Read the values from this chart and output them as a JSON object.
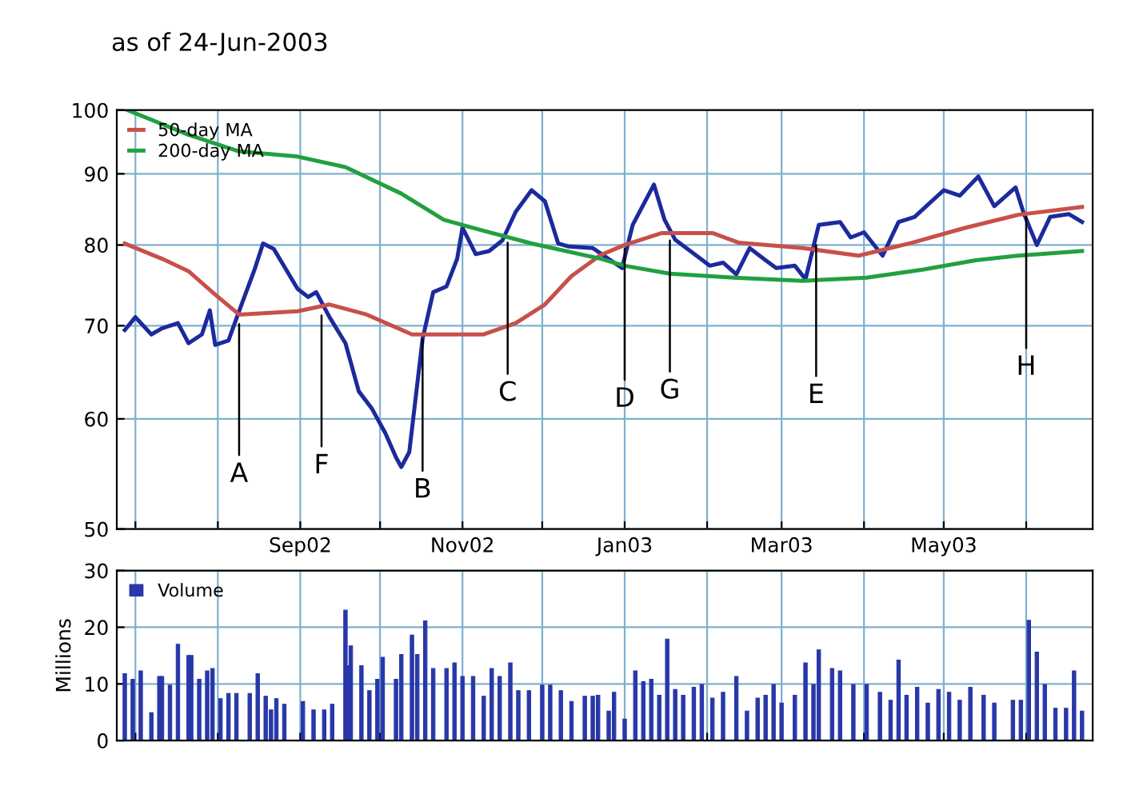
{
  "chart_data": [
    {
      "type": "line",
      "title": "as of 24-Jun-2003",
      "log": "y",
      "ylim": [
        50,
        100
      ],
      "yticks": [
        50,
        60,
        70,
        80,
        90,
        100
      ],
      "xlim": [
        "2002-06-24",
        "2003-06-26"
      ],
      "xticks": [
        {
          "value": "2002-07-01",
          "label": null
        },
        {
          "value": "2002-08-01",
          "label": null
        },
        {
          "value": "2002-09-01",
          "label": "Sep02"
        },
        {
          "value": "2002-10-01",
          "label": null
        },
        {
          "value": "2002-11-01",
          "label": "Nov02"
        },
        {
          "value": "2002-12-01",
          "label": null
        },
        {
          "value": "2003-01-01",
          "label": "Jan03"
        },
        {
          "value": "2003-02-01",
          "label": null
        },
        {
          "value": "2003-03-01",
          "label": "Mar03"
        },
        {
          "value": "2003-04-01",
          "label": null
        },
        {
          "value": "2003-05-01",
          "label": "May03"
        },
        {
          "value": "2003-06-01",
          "label": null
        }
      ],
      "grid": true,
      "legend": "top left",
      "series": [
        {
          "color": "#1c2a9c",
          "x": [
            "2002-06-27",
            "2002-07-01",
            "2002-07-07",
            "2002-07-11",
            "2002-07-17",
            "2002-07-21",
            "2002-07-26",
            "2002-07-29",
            "2002-07-31",
            "2002-08-05",
            "2002-08-09",
            "2002-08-15",
            "2002-08-18",
            "2002-08-22",
            "2002-08-31",
            "2002-09-04",
            "2002-09-07",
            "2002-09-12",
            "2002-09-18",
            "2002-09-23",
            "2002-09-28",
            "2002-10-03",
            "2002-10-07",
            "2002-10-09",
            "2002-10-12",
            "2002-10-17",
            "2002-10-21",
            "2002-10-26",
            "2002-10-30",
            "2002-11-01",
            "2002-11-06",
            "2002-11-11",
            "2002-11-16",
            "2002-11-21",
            "2002-11-27",
            "2002-12-02",
            "2002-12-07",
            "2002-12-11",
            "2002-12-20",
            "2002-12-25",
            "2002-12-31",
            "2003-01-04",
            "2003-01-12",
            "2003-01-16",
            "2003-01-20",
            "2003-01-28",
            "2003-02-02",
            "2003-02-07",
            "2003-02-12",
            "2003-02-17",
            "2003-02-23",
            "2003-02-27",
            "2003-03-06",
            "2003-03-10",
            "2003-03-15",
            "2003-03-23",
            "2003-03-27",
            "2003-04-01",
            "2003-04-08",
            "2003-04-14",
            "2003-04-20",
            "2003-05-01",
            "2003-05-07",
            "2003-05-14",
            "2003-05-20",
            "2003-05-28",
            "2003-05-31",
            "2003-06-05",
            "2003-06-10",
            "2003-06-17",
            "2003-06-22"
          ],
          "values": [
            69.5,
            71,
            69,
            69.7,
            70.3,
            68,
            69,
            71.8,
            67.8,
            68.3,
            71.7,
            77,
            80.2,
            79.5,
            74.4,
            73.4,
            74,
            71,
            68,
            62.8,
            61,
            58.6,
            56.3,
            55.4,
            56.8,
            68.5,
            74,
            74.7,
            78.2,
            82.3,
            78.8,
            79.2,
            80.6,
            84.5,
            87.6,
            86,
            80.2,
            79.8,
            79.6,
            78.4,
            77,
            82.7,
            88.4,
            83.4,
            80.7,
            78.6,
            77.3,
            77.7,
            76.2,
            79.6,
            78,
            77,
            77.3,
            75.6,
            82.7,
            83.1,
            81,
            81.7,
            78.6,
            83.1,
            83.8,
            87.6,
            86.8,
            89.6,
            85.3,
            88,
            84.4,
            80,
            83.8,
            84.2,
            83.1
          ]
        },
        {
          "name": "50-day MA",
          "color": "#c8504a",
          "x": [
            "2002-06-27",
            "2002-07-11",
            "2002-07-21",
            "2002-07-31",
            "2002-08-09",
            "2002-08-31",
            "2002-09-12",
            "2002-09-26",
            "2002-10-13",
            "2002-10-29",
            "2002-11-09",
            "2002-11-21",
            "2002-12-02",
            "2002-12-12",
            "2002-12-23",
            "2003-01-01",
            "2003-01-15",
            "2003-02-03",
            "2003-02-13",
            "2003-03-09",
            "2003-03-30",
            "2003-04-19",
            "2003-05-09",
            "2003-05-29",
            "2003-06-22"
          ],
          "values": [
            80.2,
            78.2,
            76.6,
            73.7,
            71.3,
            71.7,
            72.5,
            71.3,
            69,
            69,
            69,
            70.3,
            72.5,
            76,
            78.7,
            80,
            81.6,
            81.6,
            80.3,
            79.6,
            78.6,
            80.3,
            82.3,
            84.1,
            85.2
          ]
        },
        {
          "name": "200-day MA",
          "color": "#22a040",
          "x": [
            "2002-06-28",
            "2002-07-21",
            "2002-08-09",
            "2002-08-31",
            "2002-09-18",
            "2002-10-09",
            "2002-10-25",
            "2002-11-07",
            "2002-11-27",
            "2002-12-23",
            "2003-01-01",
            "2003-01-18",
            "2003-02-11",
            "2003-03-09",
            "2003-04-02",
            "2003-04-23",
            "2003-05-13",
            "2003-05-29",
            "2003-06-22"
          ],
          "values": [
            100,
            96,
            93.4,
            92.6,
            91,
            87.1,
            83.4,
            82.1,
            80.2,
            78.2,
            77.3,
            76.3,
            75.8,
            75.4,
            75.8,
            76.8,
            78,
            78.6,
            79.2
          ]
        }
      ],
      "annotations": [
        {
          "text": "A",
          "x": "2002-08-09",
          "y": 70.2
        },
        {
          "text": "F",
          "x": "2002-09-09",
          "y": 71.2
        },
        {
          "text": "B",
          "x": "2002-10-17",
          "y": 68.4
        },
        {
          "text": "C",
          "x": "2002-11-18",
          "y": 80.3
        },
        {
          "text": "D",
          "x": "2003-01-01",
          "y": 79.5
        },
        {
          "text": "G",
          "x": "2003-01-18",
          "y": 80.6
        },
        {
          "text": "E",
          "x": "2003-03-14",
          "y": 80
        },
        {
          "text": "H",
          "x": "2003-06-01",
          "y": 83.8
        }
      ]
    },
    {
      "type": "bar",
      "ylabel": "Millions",
      "ylim": [
        0,
        30
      ],
      "yticks": [
        0,
        10,
        20,
        30
      ],
      "xlim": [
        "2002-06-24",
        "2003-06-26"
      ],
      "tick_labels": "y",
      "grid": true,
      "legend": "top left",
      "xticks": [
        {
          "value": "2002-07-01",
          "label": null
        },
        {
          "value": "2002-08-01",
          "label": null
        },
        {
          "value": "2002-09-01",
          "label": null
        },
        {
          "value": "2002-10-01",
          "label": null
        },
        {
          "value": "2002-11-01",
          "label": null
        },
        {
          "value": "2002-12-01",
          "label": null
        },
        {
          "value": "2003-01-01",
          "label": null
        },
        {
          "value": "2003-02-01",
          "label": null
        },
        {
          "value": "2003-03-01",
          "label": null
        },
        {
          "value": "2003-04-01",
          "label": null
        },
        {
          "value": "2003-05-01",
          "label": null
        },
        {
          "value": "2003-06-01",
          "label": null
        }
      ],
      "x": [
        "2002-06-27",
        "2002-06-30",
        "2002-07-03",
        "2002-07-07",
        "2002-07-10",
        "2002-07-11",
        "2002-07-14",
        "2002-07-17",
        "2002-07-21",
        "2002-07-22",
        "2002-07-25",
        "2002-07-28",
        "2002-07-30",
        "2002-08-02",
        "2002-08-05",
        "2002-08-08",
        "2002-08-13",
        "2002-08-16",
        "2002-08-19",
        "2002-08-21",
        "2002-08-23",
        "2002-08-26",
        "2002-09-02",
        "2002-09-06",
        "2002-09-10",
        "2002-09-13",
        "2002-09-18",
        "2002-09-19",
        "2002-09-20",
        "2002-09-24",
        "2002-09-27",
        "2002-09-30",
        "2002-10-02",
        "2002-10-07",
        "2002-10-09",
        "2002-10-13",
        "2002-10-15",
        "2002-10-18",
        "2002-10-21",
        "2002-10-26",
        "2002-10-29",
        "2002-11-01",
        "2002-11-05",
        "2002-11-09",
        "2002-11-12",
        "2002-11-15",
        "2002-11-19",
        "2002-11-22",
        "2002-11-26",
        "2002-12-01",
        "2002-12-04",
        "2002-12-08",
        "2002-12-12",
        "2002-12-17",
        "2002-12-20",
        "2002-12-22",
        "2002-12-26",
        "2002-12-28",
        "2003-01-01",
        "2003-01-05",
        "2003-01-08",
        "2003-01-11",
        "2003-01-14",
        "2003-01-17",
        "2003-01-20",
        "2003-01-23",
        "2003-01-27",
        "2003-01-30",
        "2003-02-03",
        "2003-02-07",
        "2003-02-12",
        "2003-02-16",
        "2003-02-20",
        "2003-02-23",
        "2003-02-26",
        "2003-03-01",
        "2003-03-06",
        "2003-03-10",
        "2003-03-13",
        "2003-03-15",
        "2003-03-20",
        "2003-03-23",
        "2003-03-28",
        "2003-04-02",
        "2003-04-07",
        "2003-04-11",
        "2003-04-14",
        "2003-04-17",
        "2003-04-21",
        "2003-04-25",
        "2003-04-29",
        "2003-05-03",
        "2003-05-07",
        "2003-05-11",
        "2003-05-16",
        "2003-05-20",
        "2003-05-27",
        "2003-05-30",
        "2003-06-02",
        "2003-06-05",
        "2003-06-08",
        "2003-06-12",
        "2003-06-16",
        "2003-06-19",
        "2003-06-22"
      ],
      "series": [
        {
          "name": "Volume",
          "color": "#2838a8",
          "values": [
            11.8,
            10.8,
            12.3,
            4.9,
            11.3,
            11.3,
            9.8,
            17,
            15,
            15,
            10.8,
            12.3,
            12.7,
            7.4,
            8.3,
            8.3,
            8.3,
            11.8,
            7.8,
            5.4,
            7.4,
            6.4,
            6.9,
            5.4,
            5.4,
            6.4,
            23,
            13.2,
            16.7,
            13.2,
            8.8,
            10.8,
            14.7,
            10.8,
            15.2,
            18.6,
            15.2,
            21.1,
            12.7,
            12.7,
            13.7,
            11.3,
            11.3,
            7.8,
            12.7,
            11.3,
            13.7,
            8.8,
            8.8,
            9.8,
            9.8,
            8.8,
            6.9,
            7.8,
            7.8,
            8,
            5.2,
            8.5,
            3.8,
            12.3,
            10.4,
            10.8,
            8,
            17.9,
            9,
            8,
            9.4,
            9.9,
            7.5,
            8.5,
            11.3,
            5.2,
            7.5,
            8,
            9.9,
            6.6,
            8,
            13.7,
            9.9,
            16,
            12.7,
            12.3,
            9.9,
            9.9,
            8.5,
            7.1,
            14.2,
            8,
            9.4,
            6.6,
            9,
            8.5,
            7.1,
            9.4,
            8,
            6.6,
            7.1,
            7.1,
            21.2,
            15.6,
            9.9,
            5.7,
            5.7,
            12.3,
            5.2
          ]
        }
      ]
    }
  ]
}
